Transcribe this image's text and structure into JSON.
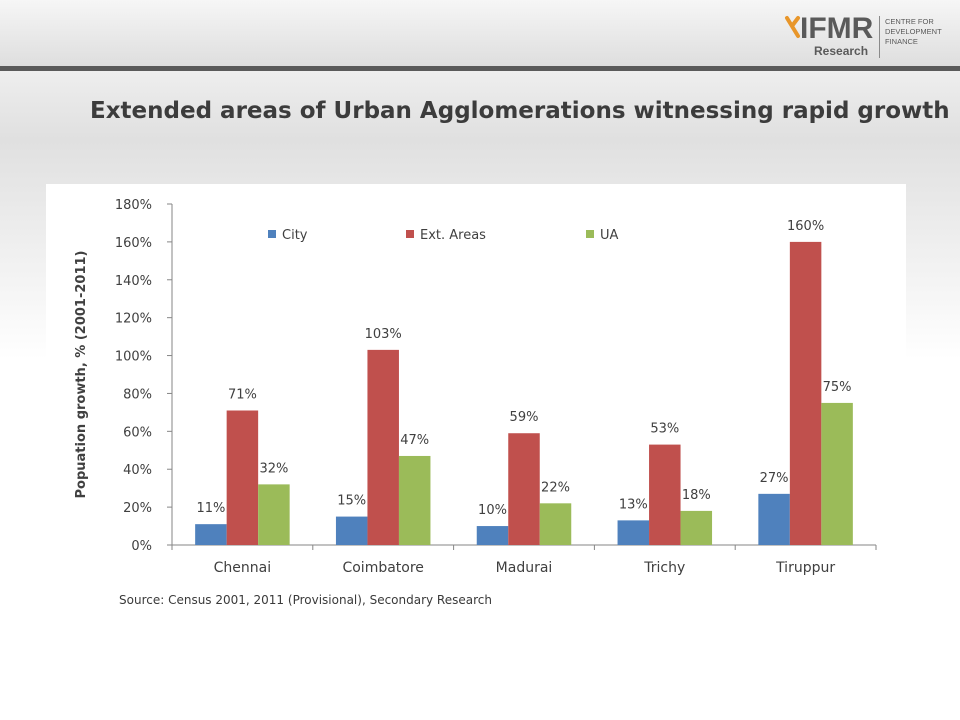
{
  "page": {
    "title": "Extended areas of Urban Agglomerations witnessing rapid growth",
    "source": "Source: Census 2001, 2011 (Provisional), Secondary Research"
  },
  "logo": {
    "name": "IFMR",
    "sub": "Research",
    "centre_lines": [
      "CENTRE FOR",
      "DEVELOPMENT",
      "FINANCE"
    ],
    "accent_color": "#e8962a",
    "text_color": "#5a5a5a"
  },
  "chart_data": {
    "type": "bar",
    "title": "",
    "xlabel": "",
    "ylabel": "Popuation growth, % (2001-2011)",
    "categories": [
      "Chennai",
      "Coimbatore",
      "Madurai",
      "Trichy",
      "Tiruppur"
    ],
    "series": [
      {
        "name": "City",
        "color": "#4f81bd",
        "values": [
          11,
          15,
          10,
          13,
          27
        ],
        "labels": [
          "11%",
          "15%",
          "10%",
          "13%",
          "27%"
        ]
      },
      {
        "name": "Ext. Areas",
        "color": "#c0504d",
        "values": [
          71,
          103,
          59,
          53,
          160
        ],
        "labels": [
          "71%",
          "103%",
          "59%",
          "53%",
          "160%"
        ]
      },
      {
        "name": "UA",
        "color": "#9bbb59",
        "values": [
          32,
          47,
          22,
          18,
          75
        ],
        "labels": [
          "32%",
          "47%",
          "22%",
          "18%",
          "75%"
        ]
      }
    ],
    "ylim": [
      0,
      180
    ],
    "yticks": [
      0,
      20,
      40,
      60,
      80,
      100,
      120,
      140,
      160,
      180
    ],
    "ytick_labels": [
      "0%",
      "20%",
      "40%",
      "60%",
      "80%",
      "100%",
      "120%",
      "140%",
      "160%",
      "180%"
    ],
    "legend_position": "top",
    "grid": false
  }
}
